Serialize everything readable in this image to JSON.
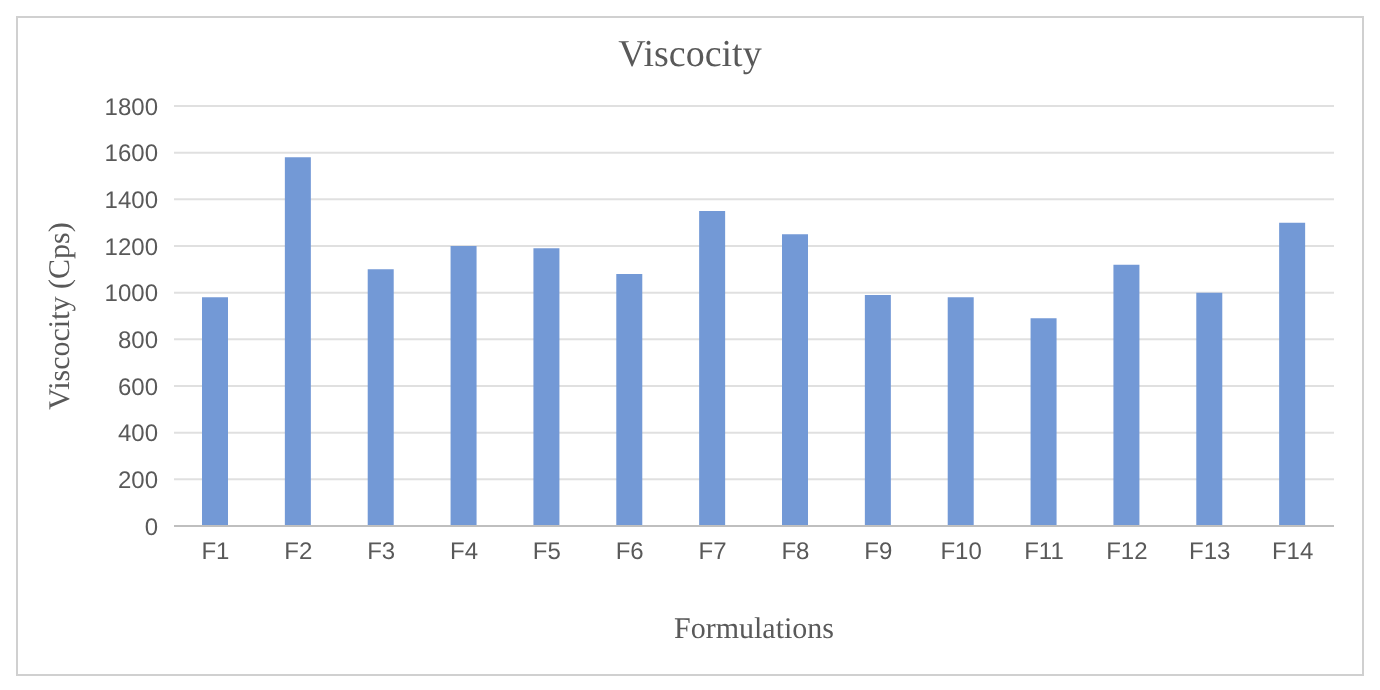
{
  "chart_data": {
    "type": "bar",
    "title": "Viscocity",
    "xlabel": "Formulations",
    "ylabel": "Viscocity (Cps)",
    "categories": [
      "F1",
      "F2",
      "F3",
      "F4",
      "F5",
      "F6",
      "F7",
      "F8",
      "F9",
      "F10",
      "F11",
      "F12",
      "F13",
      "F14"
    ],
    "values": [
      980,
      1580,
      1100,
      1200,
      1190,
      1080,
      1350,
      1250,
      990,
      980,
      890,
      1120,
      1000,
      1300
    ],
    "color": "#7399d6",
    "ylim": [
      0,
      1800
    ],
    "yticks": [
      0,
      200,
      400,
      600,
      800,
      1000,
      1200,
      1400,
      1600,
      1800
    ],
    "grid": "y"
  }
}
